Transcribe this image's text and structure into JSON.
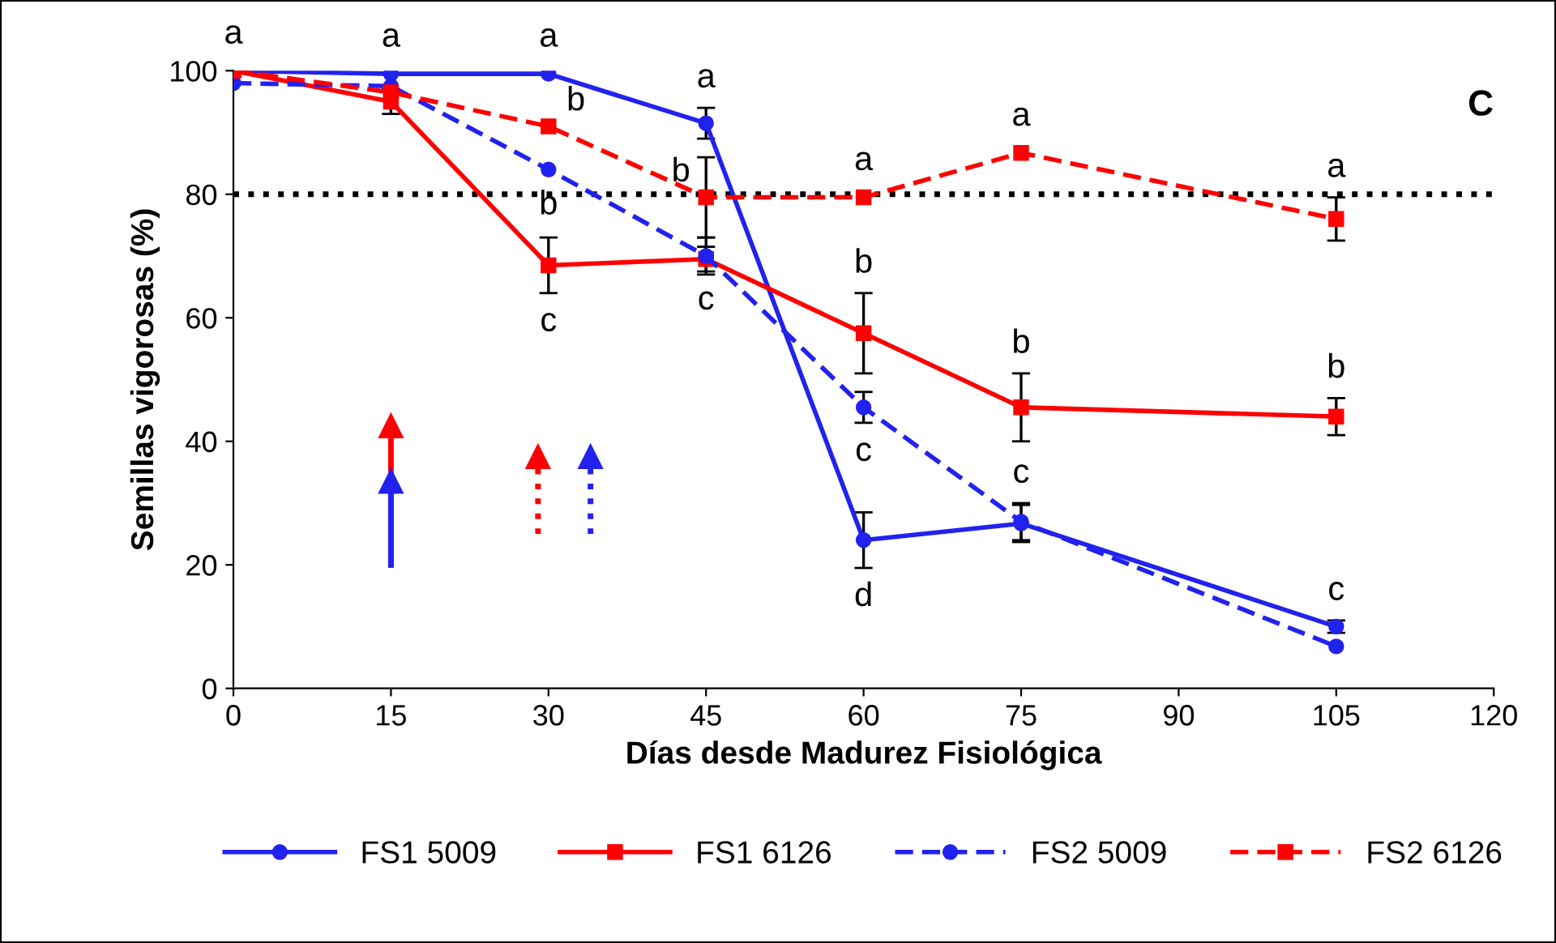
{
  "chart_data": {
    "type": "line",
    "xlabel": "Días desde Madurez Fisiológica",
    "ylabel": "Semillas vigorosas (%)",
    "x": [
      0,
      15,
      30,
      45,
      60,
      75,
      105
    ],
    "xlim": [
      0,
      120
    ],
    "xticks": [
      0,
      15,
      30,
      45,
      60,
      75,
      90,
      105,
      120
    ],
    "ylim": [
      0,
      100
    ],
    "yticks": [
      0,
      20,
      40,
      60,
      80,
      100
    ],
    "grid": false,
    "legend": "bottom",
    "series": [
      {
        "name": "FS1 5009",
        "color": "#2222ee",
        "marker": "circle",
        "line_style": "solid",
        "values": [
          100,
          99.5,
          99.5,
          91.5,
          24,
          26.7,
          10
        ],
        "errors": [
          null,
          null,
          null,
          2.5,
          4.5,
          3,
          1
        ],
        "value_labels": [
          "a",
          "a",
          "a",
          "a",
          "d",
          null,
          "c"
        ]
      },
      {
        "name": "FS1 6126",
        "color": "#ff0000",
        "marker": "square",
        "line_style": "solid",
        "values": [
          100,
          95,
          68.5,
          69.5,
          57.5,
          45.5,
          44
        ],
        "errors": [
          null,
          2,
          4.5,
          2,
          6.5,
          5.5,
          3
        ],
        "value_labels": [
          null,
          null,
          "c",
          "c",
          "b",
          "b",
          "b"
        ]
      },
      {
        "name": "FS2 5009",
        "color": "#2222ee",
        "marker": "circle",
        "line_style": "dashed",
        "values": [
          98,
          97.5,
          84,
          70,
          45.5,
          27,
          6.8
        ],
        "errors": [
          null,
          null,
          null,
          3,
          2.5,
          3,
          null
        ],
        "value_labels": [
          null,
          null,
          "b",
          null,
          "c",
          "c",
          null
        ]
      },
      {
        "name": "FS2 6126",
        "color": "#ff0000",
        "marker": "square",
        "line_style": "dashed",
        "values": [
          100,
          96.5,
          91,
          79.5,
          79.5,
          86.7,
          76
        ],
        "errors": [
          null,
          null,
          null,
          6.5,
          null,
          null,
          3.5
        ],
        "value_labels": [
          null,
          null,
          "b",
          "b",
          "a",
          "a",
          "a"
        ]
      }
    ],
    "ref_lines": [
      {
        "axis": "y",
        "value": 80,
        "color": "#000000",
        "line_style": "dotted"
      }
    ],
    "annotations": [
      "C"
    ]
  }
}
